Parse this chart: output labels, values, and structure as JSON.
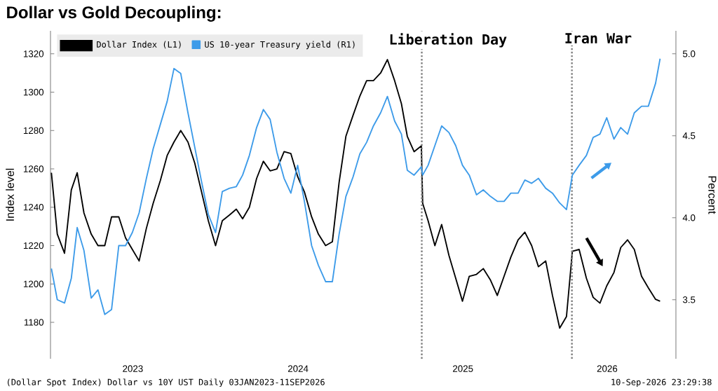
{
  "chart_data": {
    "type": "line",
    "title": "Dollar vs Gold Decoupling:",
    "ylabel": "Index level",
    "y2label": "Percent",
    "x": [
      "2023-01-03",
      "2023-01-16",
      "2023-02-01",
      "2023-02-16",
      "2023-03-01",
      "2023-03-16",
      "2023-04-01",
      "2023-04-16",
      "2023-05-01",
      "2023-05-16",
      "2023-06-01",
      "2023-06-16",
      "2023-07-01",
      "2023-07-16",
      "2023-08-01",
      "2023-08-16",
      "2023-09-01",
      "2023-09-16",
      "2023-10-01",
      "2023-10-16",
      "2023-11-01",
      "2023-11-16",
      "2023-12-01",
      "2023-12-16",
      "2024-01-01",
      "2024-01-16",
      "2024-02-01",
      "2024-02-16",
      "2024-03-01",
      "2024-03-16",
      "2024-04-01",
      "2024-04-16",
      "2024-05-01",
      "2024-05-16",
      "2024-06-01",
      "2024-06-16",
      "2024-07-01",
      "2024-07-16",
      "2024-08-01",
      "2024-08-16",
      "2024-09-01",
      "2024-09-16",
      "2024-10-01",
      "2024-10-16",
      "2024-11-01",
      "2024-11-16",
      "2024-12-01",
      "2024-12-16",
      "2025-01-01",
      "2025-01-16",
      "2025-02-01",
      "2025-02-16",
      "2025-03-01",
      "2025-03-16",
      "2025-04-01",
      "2025-04-04",
      "2025-04-16",
      "2025-05-01",
      "2025-05-16",
      "2025-06-01",
      "2025-06-16",
      "2025-07-01",
      "2025-07-16",
      "2025-08-01",
      "2025-08-16",
      "2025-09-01",
      "2025-09-16",
      "2025-10-01",
      "2025-10-16",
      "2025-11-01",
      "2025-11-16",
      "2025-12-01",
      "2025-12-16",
      "2026-01-01",
      "2026-01-16",
      "2026-02-01",
      "2026-02-16",
      "2026-03-01",
      "2026-03-16",
      "2026-04-01",
      "2026-04-16",
      "2026-05-01",
      "2026-05-16",
      "2026-06-01",
      "2026-06-16",
      "2026-07-01",
      "2026-07-16",
      "2026-08-01",
      "2026-08-16",
      "2026-09-01",
      "2026-09-11"
    ],
    "series": [
      {
        "name": "Dollar Index (L1)",
        "color": "#000000",
        "values": [
          1258,
          1226,
          1216,
          1249,
          1258,
          1237,
          1226,
          1220,
          1220,
          1235,
          1235,
          1224,
          1218,
          1212,
          1229,
          1242,
          1254,
          1267,
          1274,
          1280,
          1274,
          1263,
          1248,
          1233,
          1220,
          1233,
          1236,
          1239,
          1234,
          1240,
          1255,
          1264,
          1259,
          1260,
          1269,
          1268,
          1256,
          1248,
          1235,
          1226,
          1220,
          1222,
          1253,
          1277,
          1288,
          1298,
          1306,
          1306,
          1310,
          1317,
          1306,
          1294,
          1277,
          1269,
          1272,
          1242,
          1233,
          1220,
          1231,
          1215,
          1203,
          1191,
          1204,
          1205,
          1208,
          1202,
          1194,
          1204,
          1214,
          1223,
          1227,
          1220,
          1209,
          1212,
          1194,
          1177,
          1183,
          1217,
          1218,
          1203,
          1193,
          1190,
          1199,
          1206,
          1219,
          1223,
          1218,
          1204,
          1198,
          1192,
          1191
        ]
      },
      {
        "name": "US 10-year Treasury yield (R1)",
        "color": "#3d9be9",
        "axis": "y2",
        "values": [
          3.69,
          3.5,
          3.48,
          3.63,
          3.94,
          3.8,
          3.51,
          3.56,
          3.41,
          3.44,
          3.83,
          3.83,
          3.91,
          4.03,
          4.24,
          4.42,
          4.57,
          4.71,
          4.91,
          4.88,
          4.64,
          4.43,
          4.22,
          4.02,
          3.91,
          4.16,
          4.18,
          4.19,
          4.26,
          4.38,
          4.55,
          4.66,
          4.6,
          4.4,
          4.24,
          4.15,
          4.32,
          4.1,
          3.83,
          3.71,
          3.61,
          3.61,
          3.9,
          4.13,
          4.25,
          4.39,
          4.46,
          4.56,
          4.64,
          4.74,
          4.59,
          4.51,
          4.29,
          4.26,
          4.31,
          4.26,
          4.32,
          4.44,
          4.56,
          4.52,
          4.44,
          4.32,
          4.26,
          4.14,
          4.17,
          4.13,
          4.1,
          4.1,
          4.15,
          4.15,
          4.23,
          4.21,
          4.24,
          4.18,
          4.15,
          4.09,
          4.05,
          4.26,
          4.32,
          4.38,
          4.49,
          4.51,
          4.61,
          4.48,
          4.55,
          4.51,
          4.64,
          4.68,
          4.68,
          4.82,
          4.97
        ]
      }
    ],
    "xlim": [
      "2023-01-01",
      "2026-10-16"
    ],
    "xticks": [
      {
        "value": "2023-07-02",
        "label": "2023"
      },
      {
        "value": "2024-07-02",
        "label": "2024"
      },
      {
        "value": "2025-07-02",
        "label": "2025"
      },
      {
        "value": "2026-05-17",
        "label": "2026"
      }
    ],
    "ylim": [
      1161,
      1332
    ],
    "yticks": [
      1180,
      1200,
      1220,
      1240,
      1260,
      1280,
      1300,
      1320
    ],
    "y2lim": [
      3.14,
      5.14
    ],
    "y2ticks": [
      3.5,
      {
        "value": 4.0,
        "label": "4.0"
      },
      4.5,
      {
        "value": 5.0,
        "label": "5.0"
      }
    ],
    "ref_lines": [
      {
        "axis": "x",
        "value": "2025-04-02",
        "label": "Liberation Day",
        "color": "#808080",
        "line_style": "dotted"
      },
      {
        "axis": "x",
        "value": "2026-02-28",
        "label": "Iran War",
        "color": "#808080",
        "line_style": "dotted"
      }
    ],
    "legend": "top left",
    "annotations": [
      "(Dollar Spot Index) Dollar vs 10Y UST Daily 03JAN2023-11SEP2026",
      "10-Sep-2026 23:29:38"
    ]
  }
}
